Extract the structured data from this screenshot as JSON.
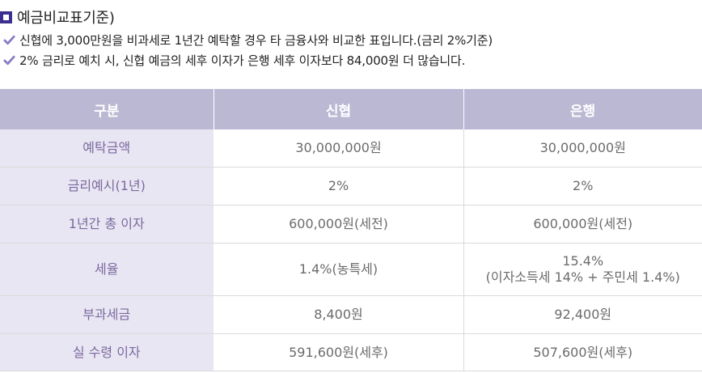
{
  "header": {
    "title": "예금비교표기준)",
    "notes": [
      "신협에 3,000만원을 비과세로 1년간 예탁할 경우 타 금융사와 비교한 표입니다.(금리 2%기준)",
      "2% 금리로 예치 시, 신협 예금의 세후 이자가 은행 세후 이자보다 84,000원 더 많습니다."
    ],
    "accent_color": "#3b2f8f",
    "check_color": "#8a7cc8"
  },
  "table": {
    "columns": [
      "구분",
      "신협",
      "은행"
    ],
    "rows": [
      {
        "label": "예탁금액",
        "shinhyup": "30,000,000원",
        "bank": "30,000,000원"
      },
      {
        "label": "금리예시(1년)",
        "shinhyup": "2%",
        "bank": "2%"
      },
      {
        "label": "1년간 총 이자",
        "shinhyup": "600,000원(세전)",
        "bank": "600,000원(세전)"
      },
      {
        "label": "세율",
        "shinhyup": "1.4%(농특세)",
        "bank": "15.4%",
        "bank_sub": "(이자소득세 14% + 주민세 1.4%)"
      },
      {
        "label": "부과세금",
        "shinhyup": "8,400원",
        "bank": "92,400원"
      },
      {
        "label": "실 수령 이자",
        "shinhyup": "591,600원(세후)",
        "bank": "507,600원(세후)"
      }
    ],
    "header_color": "#bbb8d3",
    "label_bg_color": "#e9e6f3"
  }
}
